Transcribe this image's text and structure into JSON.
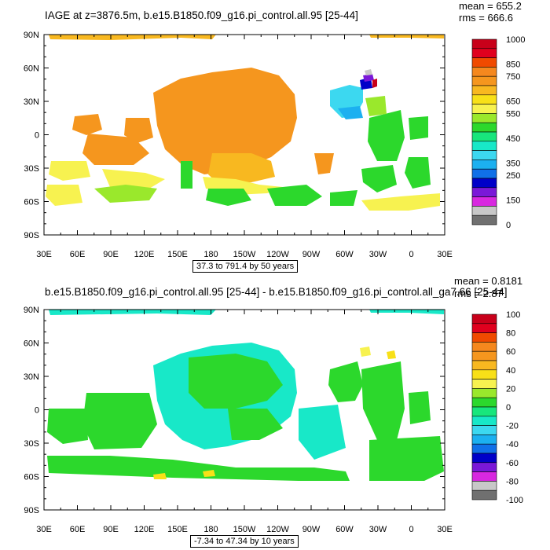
{
  "panels": [
    {
      "title": "IAGE at z=3876.5m, b.e15.B1850.f09_g16.pi_control.all.95 [25-44]",
      "mean": "mean = 655.2",
      "rms": "rms = 666.6",
      "range_label": "37.3 to 791.4 by 50 years",
      "colorbar": {
        "labels": [
          "1000",
          "",
          "850",
          "750",
          "",
          "650",
          "550",
          "",
          "450",
          "",
          "350",
          "250",
          "",
          "150",
          "",
          "0"
        ],
        "colors": [
          "#c8001a",
          "#e0001e",
          "#f04a00",
          "#f5881e",
          "#f5961e",
          "#f8b820",
          "#f8e018",
          "#f7f250",
          "#9ae82c",
          "#2cd82c",
          "#18e67c",
          "#18e8c8",
          "#3cd8f0",
          "#1cb0f0",
          "#1070e8",
          "#0000c8",
          "#7a18d8",
          "#d828e0",
          "#c8c8c8",
          "#707070"
        ]
      }
    },
    {
      "title": "b.e15.B1850.f09_g16.pi_control.all.95 [25-44] - b.e15.B1850.f09_g16.pi_control.all_ga7.66 [25-44]",
      "mean": "mean = 0.8181",
      "rms": "rms = 2.87",
      "range_label": "-7.34 to 47.34 by 10 years",
      "colorbar": {
        "labels": [
          "100",
          "80",
          "60",
          "40",
          "20",
          "0",
          "-20",
          "-40",
          "-60",
          "-80",
          "-100"
        ],
        "colors": [
          "#c8001a",
          "#e0001e",
          "#f04a00",
          "#f5881e",
          "#f5961e",
          "#f8b820",
          "#f8e018",
          "#f7f250",
          "#9ae82c",
          "#2cd82c",
          "#18e67c",
          "#18e8c8",
          "#3cd8f0",
          "#1cb0f0",
          "#1070e8",
          "#0000c8",
          "#7a18d8",
          "#d828e0",
          "#c8c8c8",
          "#707070"
        ]
      }
    }
  ],
  "axes": {
    "lat_labels": [
      "90N",
      "60N",
      "30N",
      "0",
      "30S",
      "60S",
      "90S"
    ],
    "lon_labels": [
      "30E",
      "60E",
      "90E",
      "120E",
      "150E",
      "180",
      "150W",
      "120W",
      "90W",
      "60W",
      "30W",
      "0",
      "30E"
    ]
  }
}
